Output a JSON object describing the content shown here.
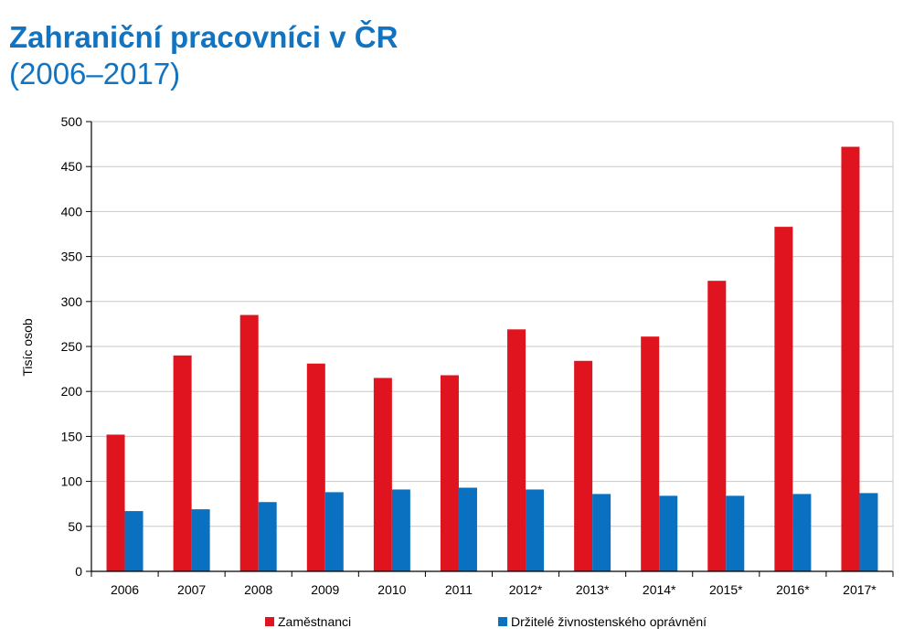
{
  "title": "Zahraniční pracovníci v ČR",
  "subtitle": "(2006–2017)",
  "chart_data": {
    "type": "bar",
    "categories": [
      "2006",
      "2007",
      "2008",
      "2009",
      "2010",
      "2011",
      "2012*",
      "2013*",
      "2014*",
      "2015*",
      "2016*",
      "2017*"
    ],
    "series": [
      {
        "name": "Zaměstnanci",
        "color": "#e0141e",
        "values": [
          152,
          240,
          285,
          231,
          215,
          218,
          269,
          234,
          261,
          323,
          383,
          472
        ]
      },
      {
        "name": "Držitelé živnostenského oprávnění",
        "color": "#0a70c0",
        "values": [
          67,
          69,
          77,
          88,
          91,
          93,
          91,
          86,
          84,
          84,
          86,
          87
        ]
      }
    ],
    "ylabel": "Tisíc osob",
    "ylim": [
      0,
      500
    ],
    "yticks": [
      0,
      50,
      100,
      150,
      200,
      250,
      300,
      350,
      400,
      450,
      500
    ],
    "grid": true,
    "legend": "bottom"
  }
}
